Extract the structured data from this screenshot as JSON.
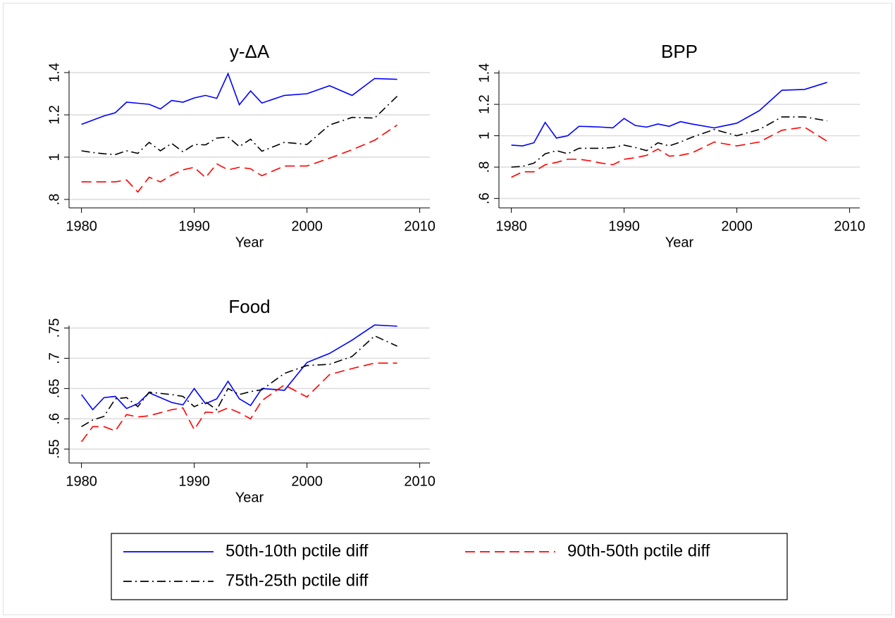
{
  "chart_data": [
    {
      "type": "line",
      "title": "y-ΔA",
      "xlabel": "Year",
      "x": [
        1980,
        1981,
        1982,
        1983,
        1984,
        1985,
        1986,
        1987,
        1988,
        1989,
        1990,
        1991,
        1992,
        1993,
        1994,
        1995,
        1996,
        1998,
        2000,
        2002,
        2004,
        2006,
        2008
      ],
      "xlim": [
        1978.9,
        2010.9
      ],
      "xticks": [
        1980,
        1990,
        2000,
        2010
      ],
      "ylim": [
        0.76,
        1.45
      ],
      "yticks": [
        {
          "value": 0.8,
          "label": ".8"
        },
        1,
        1.2,
        1.4
      ],
      "grid": true,
      "series": [
        {
          "name": "50th-10th pctile diff",
          "color": "#0000ff",
          "linestyle": "solid",
          "values": [
            1.155,
            1.175,
            1.195,
            1.21,
            1.26,
            1.255,
            1.25,
            1.228,
            1.268,
            1.26,
            1.28,
            1.292,
            1.278,
            1.395,
            1.248,
            1.313,
            1.256,
            1.292,
            1.3,
            1.338,
            1.292,
            1.372,
            1.368
          ]
        },
        {
          "name": "90th-50th pctile diff",
          "color": "#ff0000",
          "linestyle": "dashed",
          "values": [
            0.883,
            0.883,
            0.883,
            0.883,
            0.892,
            0.835,
            0.905,
            0.883,
            0.915,
            0.94,
            0.952,
            0.903,
            0.968,
            0.94,
            0.952,
            0.945,
            0.912,
            0.958,
            0.958,
            0.995,
            1.035,
            1.08,
            1.152
          ]
        },
        {
          "name": "75th-25th pctile diff",
          "color": "#000000",
          "linestyle": "dashdot",
          "values": [
            1.03,
            1.022,
            1.016,
            1.012,
            1.03,
            1.018,
            1.07,
            1.03,
            1.065,
            1.025,
            1.06,
            1.058,
            1.09,
            1.095,
            1.05,
            1.085,
            1.028,
            1.07,
            1.06,
            1.152,
            1.188,
            1.185,
            1.288
          ]
        }
      ]
    },
    {
      "type": "line",
      "title": "BPP",
      "xlabel": "Year",
      "x": [
        1980,
        1981,
        1982,
        1983,
        1984,
        1985,
        1986,
        1987,
        1988,
        1989,
        1990,
        1991,
        1992,
        1993,
        1994,
        1995,
        1996,
        1998,
        2000,
        2002,
        2004,
        2006,
        2008
      ],
      "xlim": [
        1978.9,
        2010.9
      ],
      "xticks": [
        1980,
        1990,
        2000,
        2010
      ],
      "ylim": [
        0.54,
        1.47
      ],
      "yticks": [
        {
          "value": 0.6,
          "label": ".6"
        },
        {
          "value": 0.8,
          "label": ".8"
        },
        1,
        1.2,
        1.4
      ],
      "grid": true,
      "series": [
        {
          "color": "#0000ff",
          "linestyle": "solid",
          "values": [
            0.94,
            0.935,
            0.955,
            1.085,
            0.985,
            1.0,
            1.06,
            1.058,
            1.055,
            1.05,
            1.11,
            1.065,
            1.055,
            1.075,
            1.06,
            1.09,
            1.075,
            1.05,
            1.08,
            1.16,
            1.29,
            1.295,
            1.34
          ]
        },
        {
          "color": "#ff0000",
          "linestyle": "dashed",
          "values": [
            0.735,
            0.77,
            0.77,
            0.815,
            0.83,
            0.85,
            0.85,
            0.84,
            0.825,
            0.815,
            0.85,
            0.86,
            0.875,
            0.915,
            0.87,
            0.875,
            0.89,
            0.96,
            0.935,
            0.96,
            1.035,
            1.055,
            0.965
          ]
        },
        {
          "color": "#000000",
          "linestyle": "dashdot",
          "values": [
            0.8,
            0.805,
            0.825,
            0.885,
            0.905,
            0.885,
            0.92,
            0.92,
            0.92,
            0.925,
            0.94,
            0.925,
            0.905,
            0.955,
            0.935,
            0.96,
            0.99,
            1.04,
            1.0,
            1.04,
            1.12,
            1.12,
            1.095
          ]
        }
      ]
    },
    {
      "type": "line",
      "title": "Food",
      "xlabel": "Year",
      "x": [
        1980,
        1981,
        1982,
        1983,
        1984,
        1985,
        1986,
        1987,
        1988,
        1989,
        1990,
        1991,
        1992,
        1993,
        1994,
        1995,
        1996,
        1998,
        2000,
        2002,
        2004,
        2006,
        2008
      ],
      "xlim": [
        1978.9,
        2010.9
      ],
      "xticks": [
        1980,
        1990,
        2000,
        2010
      ],
      "ylim": [
        0.527,
        0.768
      ],
      "yticks": [
        {
          "value": 0.55,
          "label": ".55"
        },
        {
          "value": 0.6,
          "label": ".6"
        },
        {
          "value": 0.65,
          "label": ".65"
        },
        {
          "value": 0.7,
          "label": ".7"
        },
        {
          "value": 0.75,
          "label": ".75"
        }
      ],
      "grid": true,
      "series": [
        {
          "color": "#0000ff",
          "linestyle": "solid",
          "values": [
            0.64,
            0.615,
            0.635,
            0.637,
            0.617,
            0.625,
            0.643,
            0.635,
            0.627,
            0.623,
            0.65,
            0.625,
            0.633,
            0.662,
            0.633,
            0.622,
            0.65,
            0.647,
            0.693,
            0.708,
            0.73,
            0.755,
            0.753
          ]
        },
        {
          "color": "#ff0000",
          "linestyle": "dashed",
          "values": [
            0.562,
            0.587,
            0.587,
            0.58,
            0.607,
            0.603,
            0.605,
            0.61,
            0.615,
            0.618,
            0.582,
            0.611,
            0.61,
            0.618,
            0.61,
            0.6,
            0.63,
            0.656,
            0.636,
            0.673,
            0.683,
            0.692,
            0.692
          ]
        },
        {
          "color": "#000000",
          "linestyle": "dashdot",
          "values": [
            0.587,
            0.598,
            0.604,
            0.633,
            0.635,
            0.62,
            0.644,
            0.642,
            0.64,
            0.637,
            0.62,
            0.628,
            0.615,
            0.65,
            0.64,
            0.645,
            0.648,
            0.675,
            0.688,
            0.69,
            0.703,
            0.737,
            0.72
          ]
        }
      ]
    }
  ]
}
